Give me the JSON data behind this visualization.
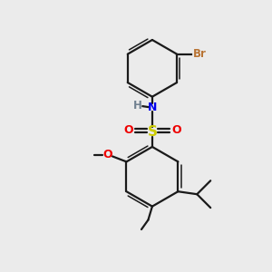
{
  "background_color": "#ebebeb",
  "bond_color": "#1a1a1a",
  "atom_colors": {
    "Br": "#b87333",
    "N": "#0000ee",
    "H": "#708090",
    "S": "#cccc00",
    "O": "#ee0000",
    "C": "#1a1a1a"
  },
  "figsize": [
    3.0,
    3.0
  ],
  "dpi": 100
}
